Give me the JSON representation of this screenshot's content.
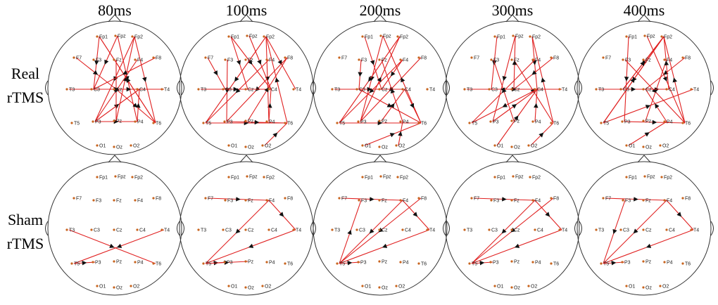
{
  "columns": [
    "80ms",
    "100ms",
    "200ms",
    "300ms",
    "400ms"
  ],
  "rows": [
    [
      "Real",
      "rTMS"
    ],
    [
      "Sham",
      "rTMS"
    ]
  ],
  "electrodes": [
    "Fp1",
    "Fpz",
    "Fp2",
    "F7",
    "F3",
    "Fz",
    "F4",
    "F8",
    "T3",
    "C3",
    "Cz",
    "C4",
    "T4",
    "T5",
    "P3",
    "Pz",
    "P4",
    "T6",
    "O1",
    "Oz",
    "O2"
  ]
}
